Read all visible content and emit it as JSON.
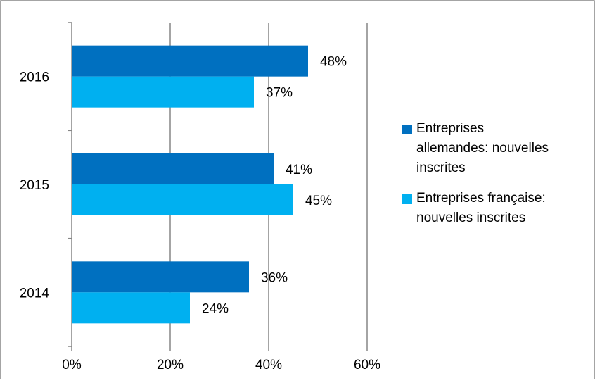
{
  "chart_data": {
    "type": "bar",
    "orientation": "horizontal",
    "categories": [
      "2014",
      "2015",
      "2016"
    ],
    "series": [
      {
        "name": "Entreprises allemandes: nouvelles inscrites",
        "values": [
          36,
          41,
          48
        ],
        "labels": [
          "36%",
          "41%",
          "48%"
        ],
        "color": "#0070C0"
      },
      {
        "name": "Entreprises française: nouvelles inscrites",
        "values": [
          24,
          45,
          37
        ],
        "labels": [
          "24%",
          "45%",
          "37%"
        ],
        "color": "#00B0F0"
      }
    ],
    "x_ticks": [
      "0%",
      "20%",
      "40%",
      "60%"
    ],
    "xlim": [
      0,
      60
    ],
    "grid": true,
    "legend_position": "right",
    "border_color": "#868686",
    "gridline_color": "#868686"
  }
}
